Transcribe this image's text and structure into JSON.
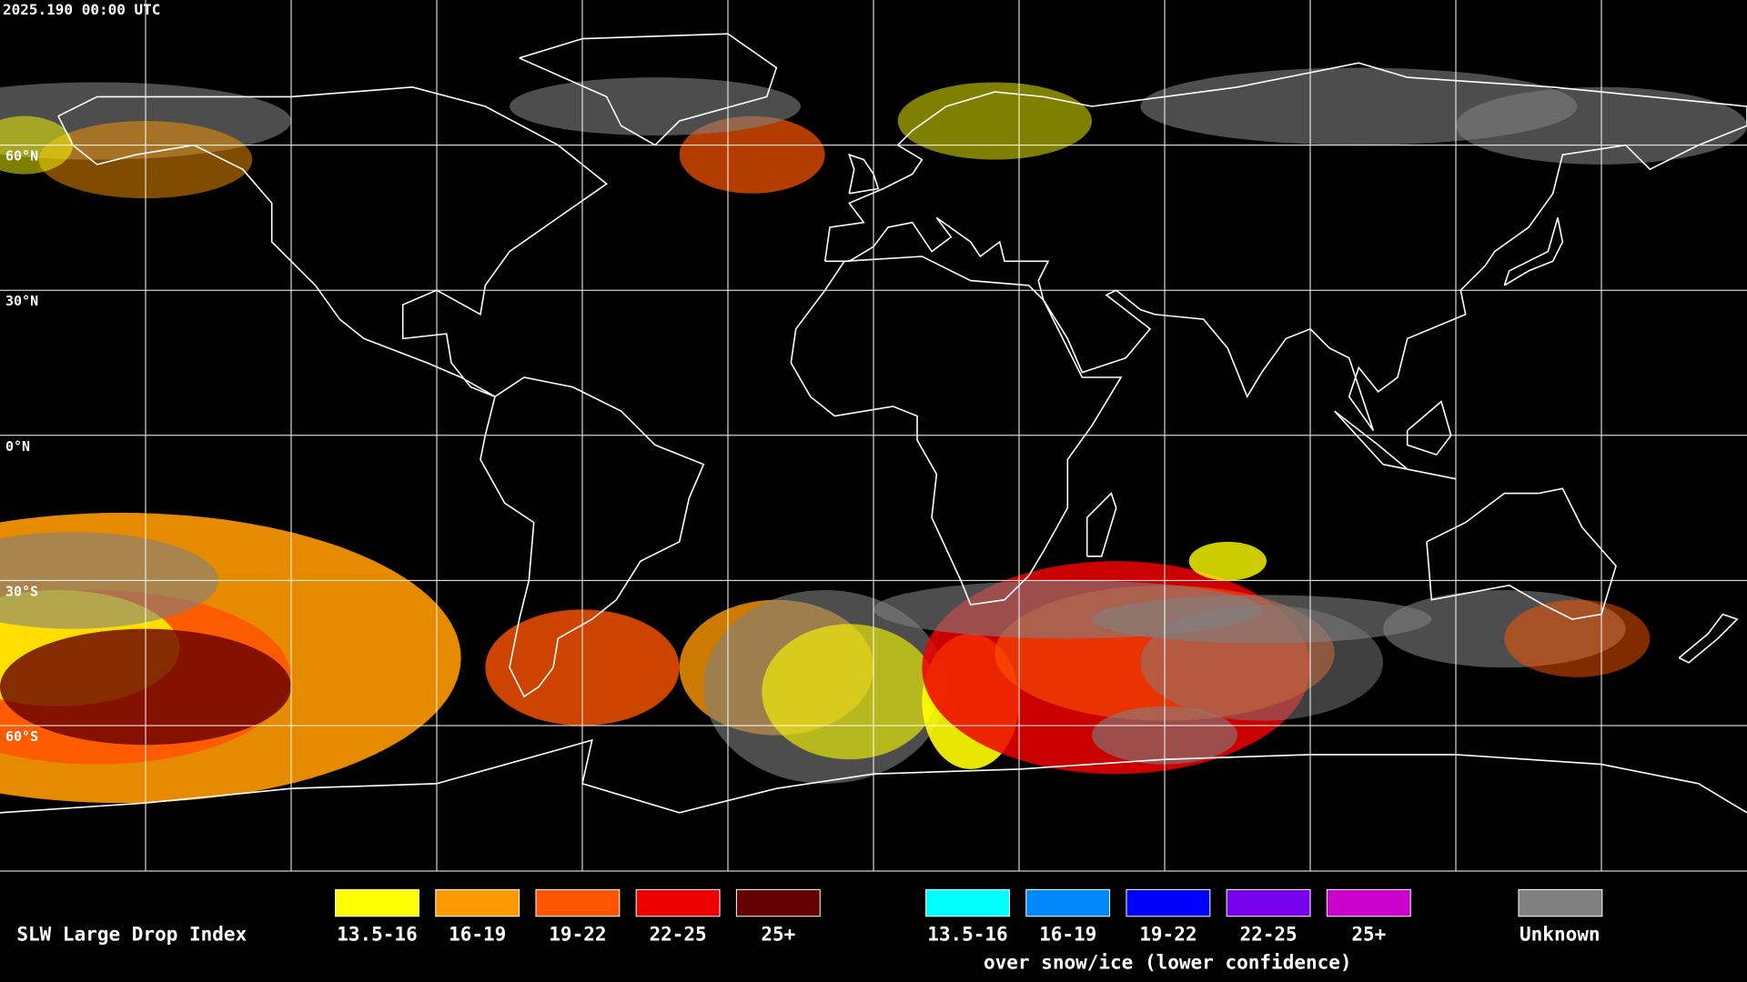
{
  "timestamp": "2025.190 00:00 UTC",
  "lat_labels": [
    "60°N",
    "30°N",
    "0°N",
    "30°S",
    "60°S"
  ],
  "legend": {
    "title": "SLW Large Drop Index",
    "liquid": [
      {
        "label": "13.5-16",
        "color": "#ffff00"
      },
      {
        "label": "16-19",
        "color": "#ff9900"
      },
      {
        "label": "19-22",
        "color": "#ff5500"
      },
      {
        "label": "22-25",
        "color": "#ee0000"
      },
      {
        "label": "25+",
        "color": "#660000"
      }
    ],
    "snow_ice": [
      {
        "label": "13.5-16",
        "color": "#00ffff"
      },
      {
        "label": "16-19",
        "color": "#0088ff"
      },
      {
        "label": "19-22",
        "color": "#0000ff"
      },
      {
        "label": "22-25",
        "color": "#7700ee"
      },
      {
        "label": "25+",
        "color": "#cc00cc"
      }
    ],
    "snow_ice_caption": "over snow/ice (lower confidence)",
    "unknown": {
      "label": "Unknown",
      "color": "#808080"
    }
  }
}
